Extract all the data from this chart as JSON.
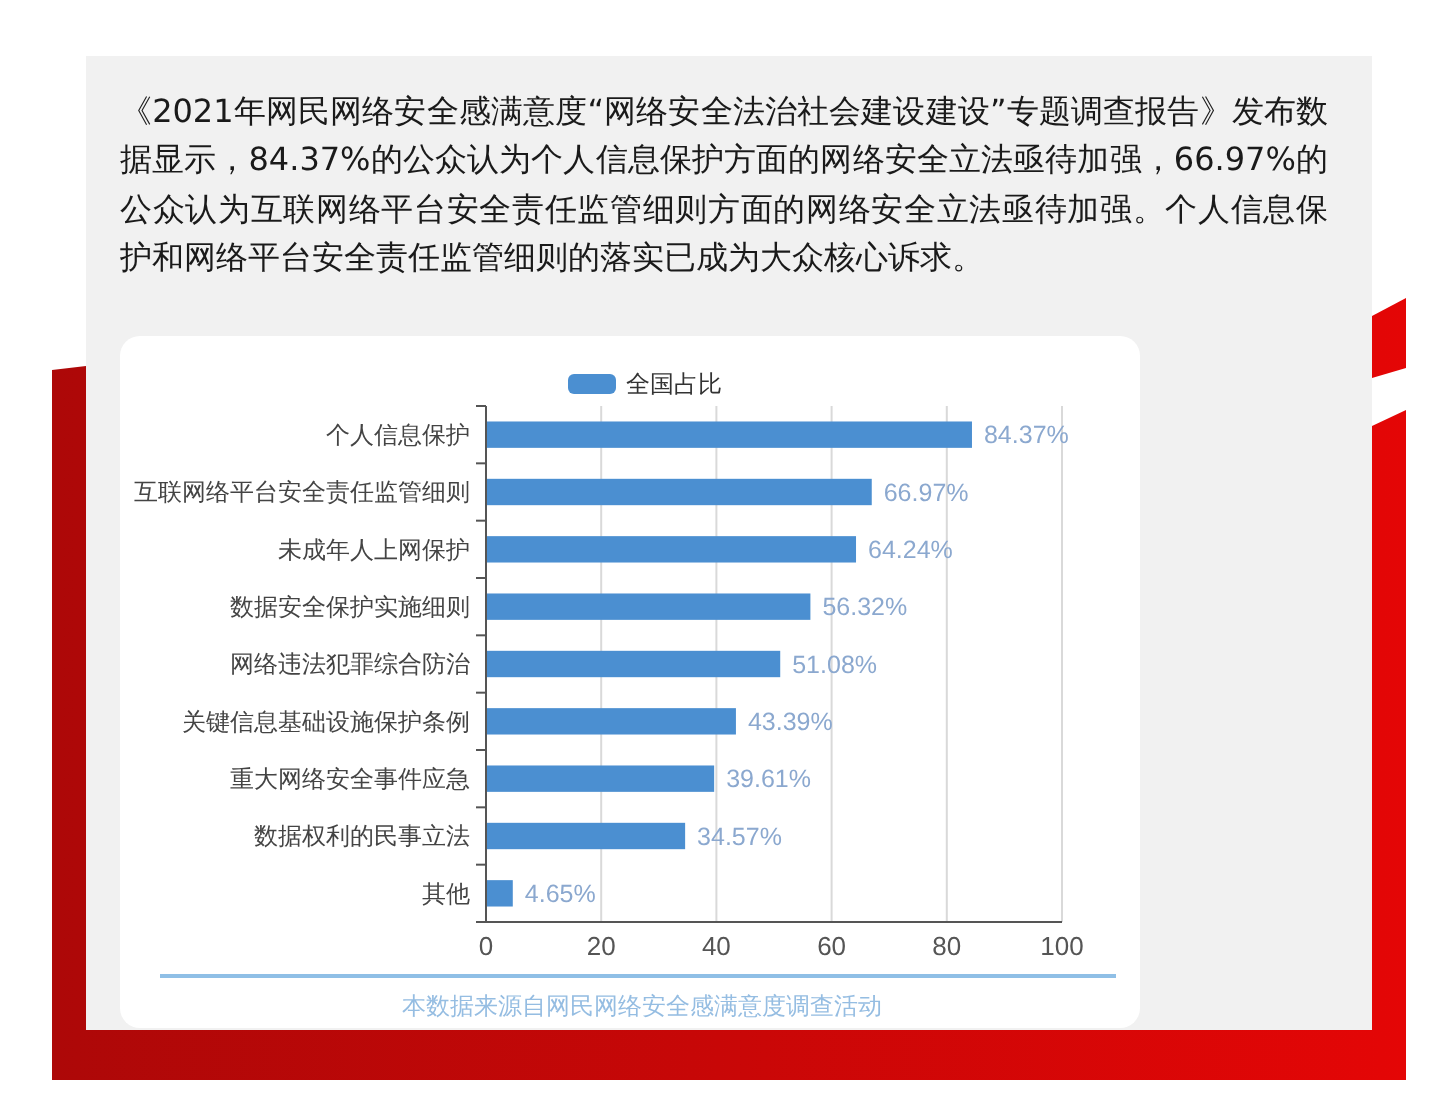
{
  "chart_data": {
    "type": "bar",
    "orientation": "horizontal",
    "subtitle": "《2021年网民网络安全感满意度“网络安全法治社会建设建设”专题调查报告》发布数据显示，84.37%的公众认为个人信息保护方面的网络安全立法亟待加强，66.97%的公众认为互联网络平台安全责任监管细则方面的网络安全立法亟待加强。个人信息保护和网络平台安全责任监管细则的落实已成为大众核心诉求。",
    "categories": [
      "个人信息保护",
      "互联网络平台安全责任监管细则",
      "未成年人上网保护",
      "数据安全保护实施细则",
      "网络违法犯罪综合防治",
      "关键信息基础设施保护条例",
      "重大网络安全事件应急",
      "数据权利的民事立法",
      "其他"
    ],
    "series": [
      {
        "name": "全国占比",
        "color": "#4b8fd1",
        "values": [
          84.37,
          66.97,
          64.24,
          56.32,
          51.08,
          43.39,
          39.61,
          34.57,
          4.65
        ],
        "value_labels": [
          "84.37%",
          "66.97%",
          "64.24%",
          "56.32%",
          "51.08%",
          "43.39%",
          "39.61%",
          "34.57%",
          "4.65%"
        ]
      }
    ],
    "xlim": [
      0,
      100
    ],
    "xticks": [
      0,
      20,
      40,
      60,
      80,
      100
    ],
    "grid": "x",
    "legend": "top",
    "annotations": [
      "本数据来源自网民网络安全感满意度调查活动"
    ]
  }
}
